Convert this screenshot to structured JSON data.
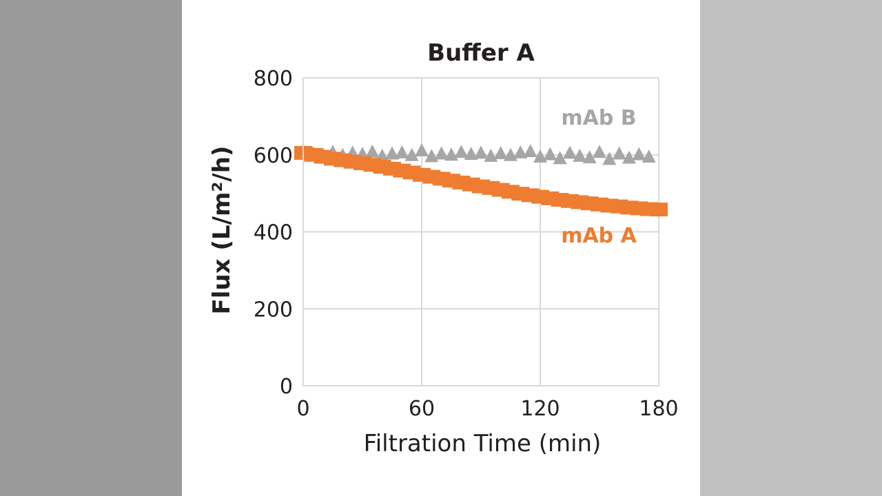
{
  "chart_data": {
    "type": "scatter",
    "title": "Buffer A",
    "xlabel": "Filtration Time (min)",
    "ylabel": "Flux (L/m²/h)",
    "xlim": [
      0,
      180
    ],
    "ylim": [
      0,
      800
    ],
    "xticks": [
      "0",
      "60",
      "120",
      "180"
    ],
    "yticks": [
      "0",
      "200",
      "400",
      "600",
      "800"
    ],
    "grid": true,
    "series": [
      {
        "name": "mAb B",
        "color": "#a6a6a6",
        "marker": "triangle",
        "x": [
          0,
          5,
          10,
          15,
          20,
          25,
          30,
          35,
          40,
          45,
          50,
          55,
          60,
          65,
          70,
          75,
          80,
          85,
          90,
          95,
          100,
          105,
          110,
          115,
          120,
          125,
          130,
          135,
          140,
          145,
          150,
          155,
          160,
          165,
          170,
          175
        ],
        "y": [
          612,
          605,
          602,
          608,
          600,
          606,
          603,
          609,
          598,
          604,
          607,
          600,
          612,
          597,
          604,
          601,
          608,
          603,
          606,
          598,
          605,
          600,
          607,
          610,
          596,
          602,
          592,
          606,
          598,
          594,
          608,
          590,
          604,
          593,
          602,
          596
        ]
      },
      {
        "name": "mAb A",
        "color": "#ee7d31",
        "marker": "square",
        "x": [
          0,
          5,
          10,
          15,
          20,
          25,
          30,
          35,
          40,
          45,
          50,
          55,
          60,
          65,
          70,
          75,
          80,
          85,
          90,
          95,
          100,
          105,
          110,
          115,
          120,
          125,
          130,
          135,
          140,
          145,
          150,
          155,
          160,
          165,
          170,
          175,
          180
        ],
        "y": [
          605,
          600,
          595,
          590,
          586,
          582,
          578,
          574,
          569,
          564,
          559,
          554,
          548,
          543,
          538,
          533,
          528,
          523,
          518,
          514,
          509,
          504,
          499,
          495,
          491,
          487,
          483,
          480,
          477,
          474,
          471,
          468,
          466,
          463,
          461,
          459,
          458
        ]
      }
    ]
  }
}
